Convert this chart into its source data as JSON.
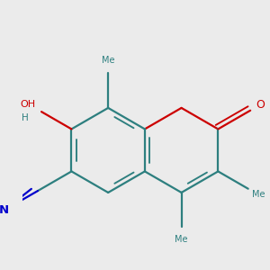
{
  "bg_color": "#ebebeb",
  "bond_color": "#2d7f7f",
  "o_color": "#cc0000",
  "n_color": "#0000cc",
  "bond_width": 1.6,
  "dbo": 0.055,
  "figsize": [
    3.0,
    3.0
  ],
  "dpi": 100,
  "xlim": [
    -1.45,
    1.45
  ],
  "ylim": [
    -1.35,
    1.55
  ]
}
